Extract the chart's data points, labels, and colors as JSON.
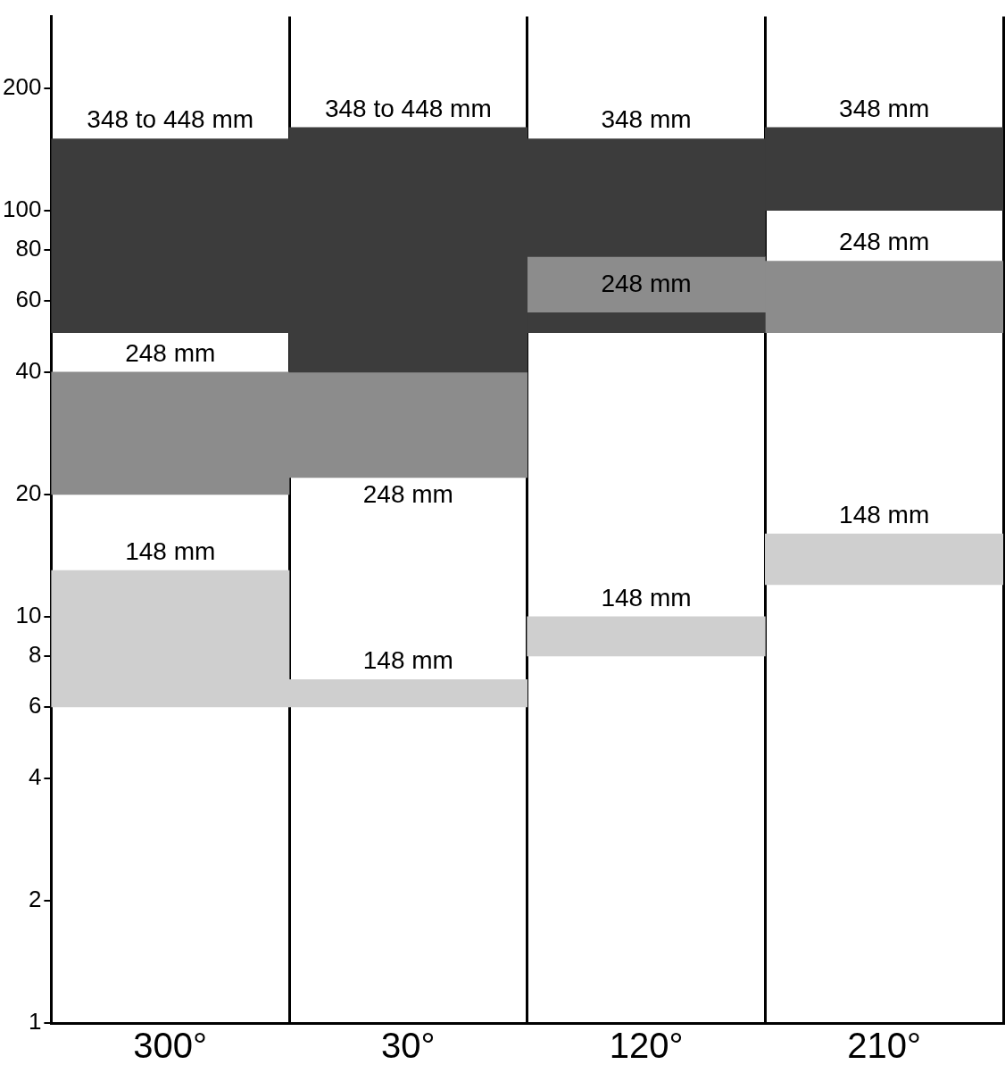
{
  "chart_data": {
    "type": "bar",
    "categories": [
      "300°",
      "30°",
      "120°",
      "210°"
    ],
    "series": [
      {
        "color": "#3c3c3c",
        "base": [
          50,
          40,
          77,
          100
        ],
        "values": [
          100,
          120,
          73,
          60
        ]
      },
      {
        "color": "#3c3c3c",
        "base": [
          null,
          null,
          50,
          null
        ],
        "values": [
          null,
          null,
          6,
          null
        ]
      },
      {
        "color": "#8c8c8c",
        "base": [
          20,
          22,
          56,
          50
        ],
        "values": [
          20,
          18,
          21,
          25
        ]
      },
      {
        "color": "#cfcfcf",
        "base": [
          6,
          6,
          8,
          12
        ],
        "values": [
          7,
          1,
          2,
          4
        ]
      }
    ],
    "log": true,
    "ylim": [
      1,
      300
    ],
    "yticks": [
      1,
      2,
      4,
      6,
      8,
      10,
      20,
      40,
      60,
      80,
      100,
      200
    ],
    "grid": "x",
    "legend": false,
    "annotations": [
      {
        "text": "348 to 448 mm",
        "x": "300°",
        "y": 150
      },
      {
        "text": "248 mm",
        "x": "300°",
        "y": 40
      },
      {
        "text": "148 mm",
        "x": "300°",
        "y": 13
      },
      {
        "text": "348 to 448 mm",
        "x": "30°",
        "y": 160
      },
      {
        "text": "248 mm",
        "x": "30°",
        "y": 22
      },
      {
        "text": "148 mm",
        "x": "30°",
        "y": 7
      },
      {
        "text": "348 mm",
        "x": "120°",
        "y": 150
      },
      {
        "text": "248 mm",
        "x": "120°",
        "y": 77
      },
      {
        "text": "148 mm",
        "x": "120°",
        "y": 10
      },
      {
        "text": "348 mm",
        "x": "210°",
        "y": 160
      },
      {
        "text": "248 mm",
        "x": "210°",
        "y": 75
      },
      {
        "text": "148 mm",
        "x": "210°",
        "y": 16
      }
    ]
  }
}
